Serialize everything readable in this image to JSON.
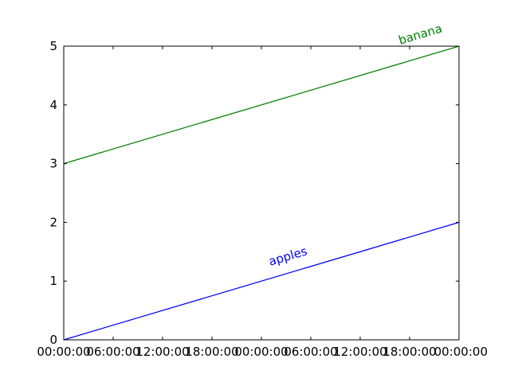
{
  "chart_data": {
    "type": "line",
    "x_axis_type": "datetime",
    "x_range": [
      "2000-01-01 00:00:00",
      "2000-01-03 00:00:00"
    ],
    "ylim": [
      0,
      5
    ],
    "grid": false,
    "yticks": [
      0,
      1,
      2,
      3,
      4,
      5
    ],
    "ytick_labels": [
      "0",
      "1",
      "2",
      "3",
      "4",
      "5"
    ],
    "xticks": [
      "2000-01-01 00:00:00",
      "2000-01-01 06:00:00",
      "2000-01-01 12:00:00",
      "2000-01-01 18:00:00",
      "2000-01-02 00:00:00",
      "2000-01-02 06:00:00",
      "2000-01-02 12:00:00",
      "2000-01-02 18:00:00",
      "2000-01-03 00:00:00"
    ],
    "xtick_labels": [
      "00:00:00",
      "06:00:00",
      "12:00:00",
      "18:00:00",
      "00:00:00",
      "06:00:00",
      "12:00:00",
      "18:00:00",
      "00:00:00"
    ],
    "series": [
      {
        "name": "apples",
        "color": "#0000ff",
        "x": [
          "2000-01-01 00:00:00",
          "2000-01-03 00:00:00"
        ],
        "y": [
          0,
          2
        ]
      },
      {
        "name": "banana",
        "color": "#008000",
        "x": [
          "2000-01-01 00:00:00",
          "2000-01-03 00:00:00"
        ],
        "y": [
          3,
          5
        ]
      }
    ]
  }
}
